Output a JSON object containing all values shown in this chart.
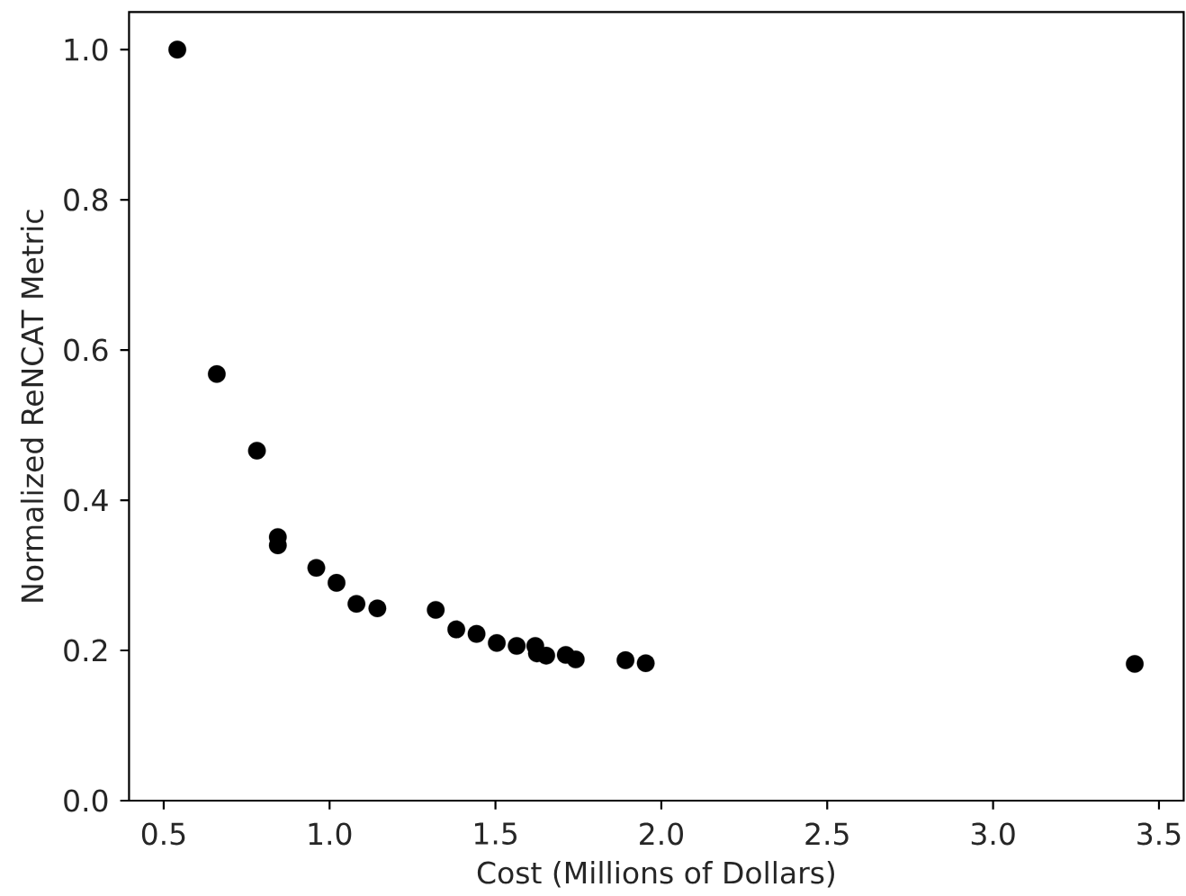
{
  "chart_data": {
    "type": "scatter",
    "xlabel": "Cost (Millions of Dollars)",
    "ylabel": "Normalized ReNCAT Metric",
    "x": [
      0.541,
      0.66,
      0.781,
      0.844,
      0.844,
      0.96,
      1.021,
      1.081,
      1.144,
      1.32,
      1.382,
      1.443,
      1.504,
      1.564,
      1.62,
      1.625,
      1.653,
      1.712,
      1.742,
      1.892,
      1.953,
      3.427
    ],
    "values": [
      1.0,
      0.568,
      0.466,
      0.351,
      0.34,
      0.31,
      0.29,
      0.262,
      0.256,
      0.254,
      0.228,
      0.222,
      0.21,
      0.206,
      0.206,
      0.196,
      0.193,
      0.194,
      0.188,
      0.187,
      0.183,
      0.182
    ],
    "color": "#000000",
    "marker": "circle",
    "xlim": [
      0.3955,
      3.5745
    ],
    "ylim": [
      0,
      1.05
    ],
    "xticks": [
      0.5,
      {
        "value": 1,
        "label": "1.0"
      },
      1.5,
      {
        "value": 2,
        "label": "2.0"
      },
      2.5,
      {
        "value": 3,
        "label": "3.0"
      },
      3.5
    ],
    "yticks": [
      {
        "value": 0,
        "label": "0.0"
      },
      0.2,
      0.4,
      0.6,
      0.8,
      {
        "value": 1,
        "label": "1.0"
      }
    ]
  }
}
